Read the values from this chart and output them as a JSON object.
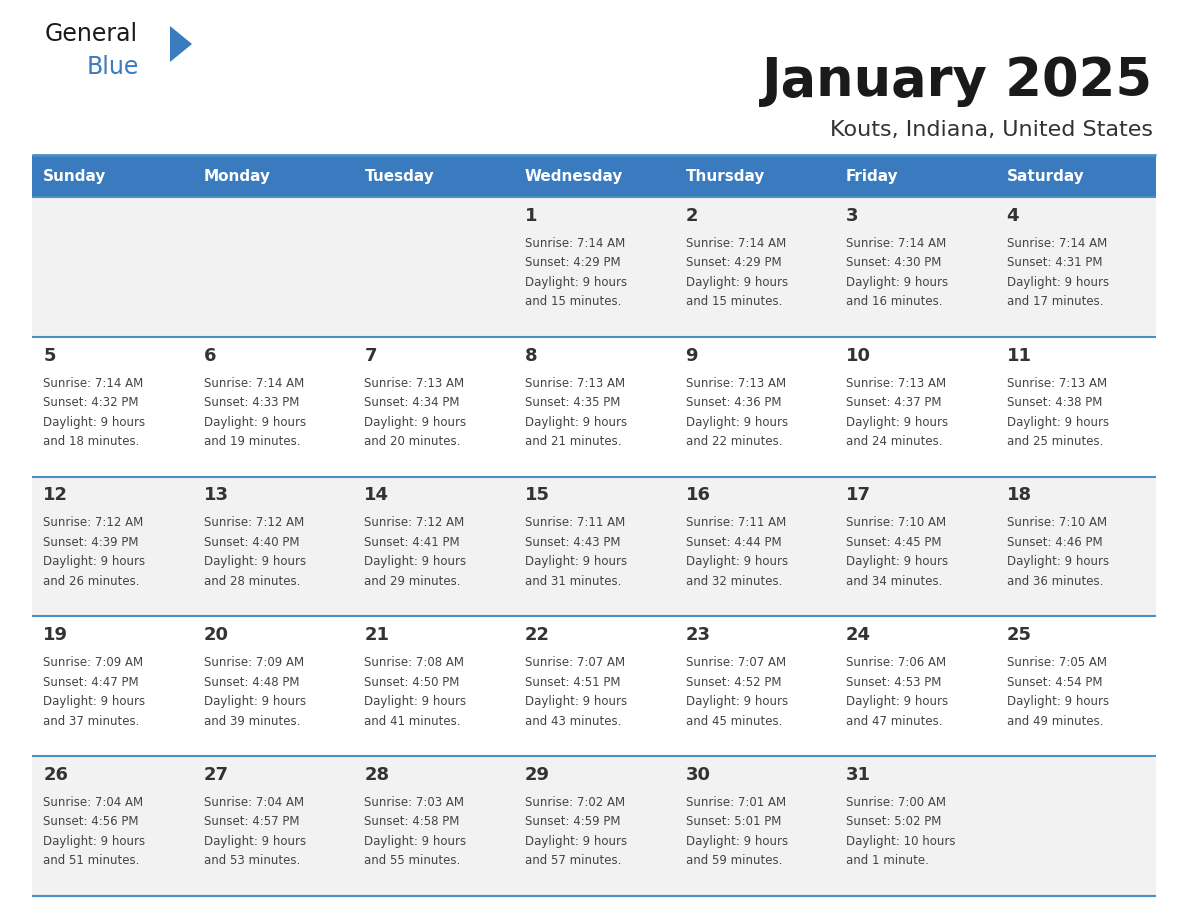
{
  "title": "January 2025",
  "subtitle": "Kouts, Indiana, United States",
  "header_color": "#3a7bbf",
  "header_text_color": "#ffffff",
  "cell_bg_row0": "#f2f2f2",
  "cell_bg_row1": "#ffffff",
  "cell_bg_row2": "#f2f2f2",
  "cell_bg_row3": "#ffffff",
  "cell_bg_row4": "#f2f2f2",
  "text_color": "#444444",
  "line_color": "#4a90c4",
  "day_headers": [
    "Sunday",
    "Monday",
    "Tuesday",
    "Wednesday",
    "Thursday",
    "Friday",
    "Saturday"
  ],
  "calendar_data": [
    [
      null,
      null,
      null,
      {
        "day": "1",
        "sunrise": "7:14 AM",
        "sunset": "4:29 PM",
        "daylight": "9 hours",
        "daylight2": "and 15 minutes."
      },
      {
        "day": "2",
        "sunrise": "7:14 AM",
        "sunset": "4:29 PM",
        "daylight": "9 hours",
        "daylight2": "and 15 minutes."
      },
      {
        "day": "3",
        "sunrise": "7:14 AM",
        "sunset": "4:30 PM",
        "daylight": "9 hours",
        "daylight2": "and 16 minutes."
      },
      {
        "day": "4",
        "sunrise": "7:14 AM",
        "sunset": "4:31 PM",
        "daylight": "9 hours",
        "daylight2": "and 17 minutes."
      }
    ],
    [
      {
        "day": "5",
        "sunrise": "7:14 AM",
        "sunset": "4:32 PM",
        "daylight": "9 hours",
        "daylight2": "and 18 minutes."
      },
      {
        "day": "6",
        "sunrise": "7:14 AM",
        "sunset": "4:33 PM",
        "daylight": "9 hours",
        "daylight2": "and 19 minutes."
      },
      {
        "day": "7",
        "sunrise": "7:13 AM",
        "sunset": "4:34 PM",
        "daylight": "9 hours",
        "daylight2": "and 20 minutes."
      },
      {
        "day": "8",
        "sunrise": "7:13 AM",
        "sunset": "4:35 PM",
        "daylight": "9 hours",
        "daylight2": "and 21 minutes."
      },
      {
        "day": "9",
        "sunrise": "7:13 AM",
        "sunset": "4:36 PM",
        "daylight": "9 hours",
        "daylight2": "and 22 minutes."
      },
      {
        "day": "10",
        "sunrise": "7:13 AM",
        "sunset": "4:37 PM",
        "daylight": "9 hours",
        "daylight2": "and 24 minutes."
      },
      {
        "day": "11",
        "sunrise": "7:13 AM",
        "sunset": "4:38 PM",
        "daylight": "9 hours",
        "daylight2": "and 25 minutes."
      }
    ],
    [
      {
        "day": "12",
        "sunrise": "7:12 AM",
        "sunset": "4:39 PM",
        "daylight": "9 hours",
        "daylight2": "and 26 minutes."
      },
      {
        "day": "13",
        "sunrise": "7:12 AM",
        "sunset": "4:40 PM",
        "daylight": "9 hours",
        "daylight2": "and 28 minutes."
      },
      {
        "day": "14",
        "sunrise": "7:12 AM",
        "sunset": "4:41 PM",
        "daylight": "9 hours",
        "daylight2": "and 29 minutes."
      },
      {
        "day": "15",
        "sunrise": "7:11 AM",
        "sunset": "4:43 PM",
        "daylight": "9 hours",
        "daylight2": "and 31 minutes."
      },
      {
        "day": "16",
        "sunrise": "7:11 AM",
        "sunset": "4:44 PM",
        "daylight": "9 hours",
        "daylight2": "and 32 minutes."
      },
      {
        "day": "17",
        "sunrise": "7:10 AM",
        "sunset": "4:45 PM",
        "daylight": "9 hours",
        "daylight2": "and 34 minutes."
      },
      {
        "day": "18",
        "sunrise": "7:10 AM",
        "sunset": "4:46 PM",
        "daylight": "9 hours",
        "daylight2": "and 36 minutes."
      }
    ],
    [
      {
        "day": "19",
        "sunrise": "7:09 AM",
        "sunset": "4:47 PM",
        "daylight": "9 hours",
        "daylight2": "and 37 minutes."
      },
      {
        "day": "20",
        "sunrise": "7:09 AM",
        "sunset": "4:48 PM",
        "daylight": "9 hours",
        "daylight2": "and 39 minutes."
      },
      {
        "day": "21",
        "sunrise": "7:08 AM",
        "sunset": "4:50 PM",
        "daylight": "9 hours",
        "daylight2": "and 41 minutes."
      },
      {
        "day": "22",
        "sunrise": "7:07 AM",
        "sunset": "4:51 PM",
        "daylight": "9 hours",
        "daylight2": "and 43 minutes."
      },
      {
        "day": "23",
        "sunrise": "7:07 AM",
        "sunset": "4:52 PM",
        "daylight": "9 hours",
        "daylight2": "and 45 minutes."
      },
      {
        "day": "24",
        "sunrise": "7:06 AM",
        "sunset": "4:53 PM",
        "daylight": "9 hours",
        "daylight2": "and 47 minutes."
      },
      {
        "day": "25",
        "sunrise": "7:05 AM",
        "sunset": "4:54 PM",
        "daylight": "9 hours",
        "daylight2": "and 49 minutes."
      }
    ],
    [
      {
        "day": "26",
        "sunrise": "7:04 AM",
        "sunset": "4:56 PM",
        "daylight": "9 hours",
        "daylight2": "and 51 minutes."
      },
      {
        "day": "27",
        "sunrise": "7:04 AM",
        "sunset": "4:57 PM",
        "daylight": "9 hours",
        "daylight2": "and 53 minutes."
      },
      {
        "day": "28",
        "sunrise": "7:03 AM",
        "sunset": "4:58 PM",
        "daylight": "9 hours",
        "daylight2": "and 55 minutes."
      },
      {
        "day": "29",
        "sunrise": "7:02 AM",
        "sunset": "4:59 PM",
        "daylight": "9 hours",
        "daylight2": "and 57 minutes."
      },
      {
        "day": "30",
        "sunrise": "7:01 AM",
        "sunset": "5:01 PM",
        "daylight": "9 hours",
        "daylight2": "and 59 minutes."
      },
      {
        "day": "31",
        "sunrise": "7:00 AM",
        "sunset": "5:02 PM",
        "daylight": "10 hours",
        "daylight2": "and 1 minute."
      },
      null
    ]
  ]
}
